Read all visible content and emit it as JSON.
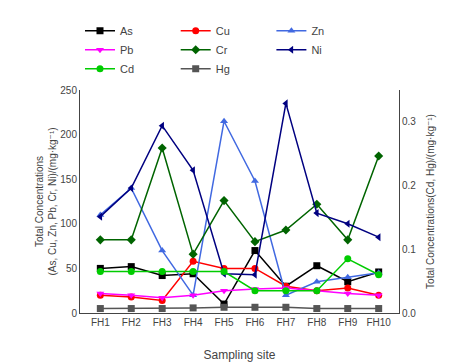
{
  "chart_data": {
    "type": "line",
    "categories": [
      "FH1",
      "FH2",
      "FH3",
      "FH4",
      "FH5",
      "FH6",
      "FH7",
      "FH8",
      "FH9",
      "FH10"
    ],
    "series": [
      {
        "name": "As",
        "color": "#000000",
        "marker": "square",
        "values": [
          50,
          52,
          42,
          44,
          10,
          70,
          30,
          53,
          35,
          46
        ]
      },
      {
        "name": "Cu",
        "color": "#ff0000",
        "marker": "circle",
        "values": [
          20,
          18,
          14,
          58,
          50,
          50,
          30,
          25,
          28,
          20
        ]
      },
      {
        "name": "Zn",
        "color": "#4169e1",
        "marker": "triangle-up",
        "values": [
          110,
          140,
          70,
          20,
          215,
          148,
          20,
          35,
          40,
          45
        ]
      },
      {
        "name": "Pb",
        "color": "#ff00ff",
        "marker": "triangle-down",
        "values": [
          22,
          20,
          17,
          20,
          25,
          27,
          28,
          25,
          22,
          20
        ]
      },
      {
        "name": "Cr",
        "color": "#006400",
        "marker": "diamond",
        "values": [
          82,
          82,
          185,
          66,
          126,
          80,
          93,
          122,
          82,
          176
        ]
      },
      {
        "name": "Ni",
        "color": "#000080",
        "marker": "triangle-left",
        "values": [
          108,
          140,
          210,
          160,
          44,
          43,
          235,
          112,
          100,
          85
        ]
      },
      {
        "name": "Cd",
        "color": "#00cc00",
        "marker": "circle",
        "axis": "y2",
        "values": [
          0.065,
          0.065,
          0.065,
          0.065,
          0.065,
          0.035,
          0.035,
          0.035,
          0.085,
          0.06
        ]
      },
      {
        "name": "Hg",
        "color": "#555555",
        "marker": "square",
        "axis": "y2",
        "values": [
          0.007,
          0.007,
          0.007,
          0.008,
          0.009,
          0.009,
          0.009,
          0.007,
          0.007,
          0.007
        ]
      }
    ],
    "xlabel": "Sampling site",
    "ylabel": "Total Concentrations\n(As, Cu, Zn, Pb, Cr, Ni)/(mg·kg⁻¹)",
    "y2label": "Total Concentrations(Cd, Hg)/(mg·kg⁻¹)",
    "ylim": [
      0,
      250
    ],
    "yticks": [
      0,
      50,
      100,
      150,
      200,
      250
    ],
    "y2lim": [
      0.0,
      0.35
    ],
    "y2ticks": [
      {
        "value": 0.0,
        "label": "0.0"
      },
      0.1,
      0.2,
      0.3
    ],
    "grid": false,
    "legend": "above"
  }
}
